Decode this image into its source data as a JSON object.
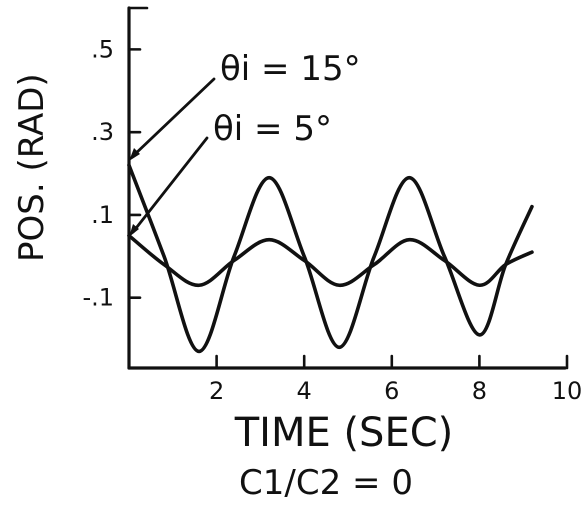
{
  "chart_data": {
    "type": "line",
    "title": "",
    "xlabel": "TIME (SEC)",
    "ylabel": "POS. (RAD)",
    "caption": "C1/C2 = 0",
    "xlim": [
      0,
      10
    ],
    "ylim": [
      -0.27,
      0.6
    ],
    "x_ticks": [
      {
        "value": 2,
        "label": "2"
      },
      {
        "value": 4,
        "label": "4"
      },
      {
        "value": 6,
        "label": "6"
      },
      {
        "value": 8,
        "label": "8"
      },
      {
        "value": 10,
        "label": "10"
      }
    ],
    "y_ticks": [
      {
        "value": 0.5,
        "label": ".5"
      },
      {
        "value": 0.3,
        "label": ".3"
      },
      {
        "value": 0.1,
        "label": ".1"
      },
      {
        "value": -0.1,
        "label": "-.1"
      }
    ],
    "grid": false,
    "series": [
      {
        "name": "θi = 15°",
        "x": [
          0,
          0.8,
          1.6,
          2.4,
          3.2,
          4.0,
          4.8,
          5.6,
          6.4,
          7.2,
          8.0,
          8.6,
          9.2
        ],
        "y": [
          0.22,
          0.0,
          -0.23,
          0.0,
          0.19,
          0.0,
          -0.22,
          0.0,
          0.19,
          0.0,
          -0.19,
          -0.02,
          0.12
        ]
      },
      {
        "name": "θi = 5°",
        "x": [
          0,
          0.8,
          1.6,
          2.4,
          3.2,
          4.0,
          4.8,
          5.6,
          6.4,
          7.2,
          8.0,
          8.6,
          9.2
        ],
        "y": [
          0.05,
          -0.02,
          -0.07,
          -0.01,
          0.04,
          -0.01,
          -0.07,
          -0.02,
          0.04,
          -0.01,
          -0.07,
          -0.02,
          0.01
        ]
      }
    ]
  }
}
